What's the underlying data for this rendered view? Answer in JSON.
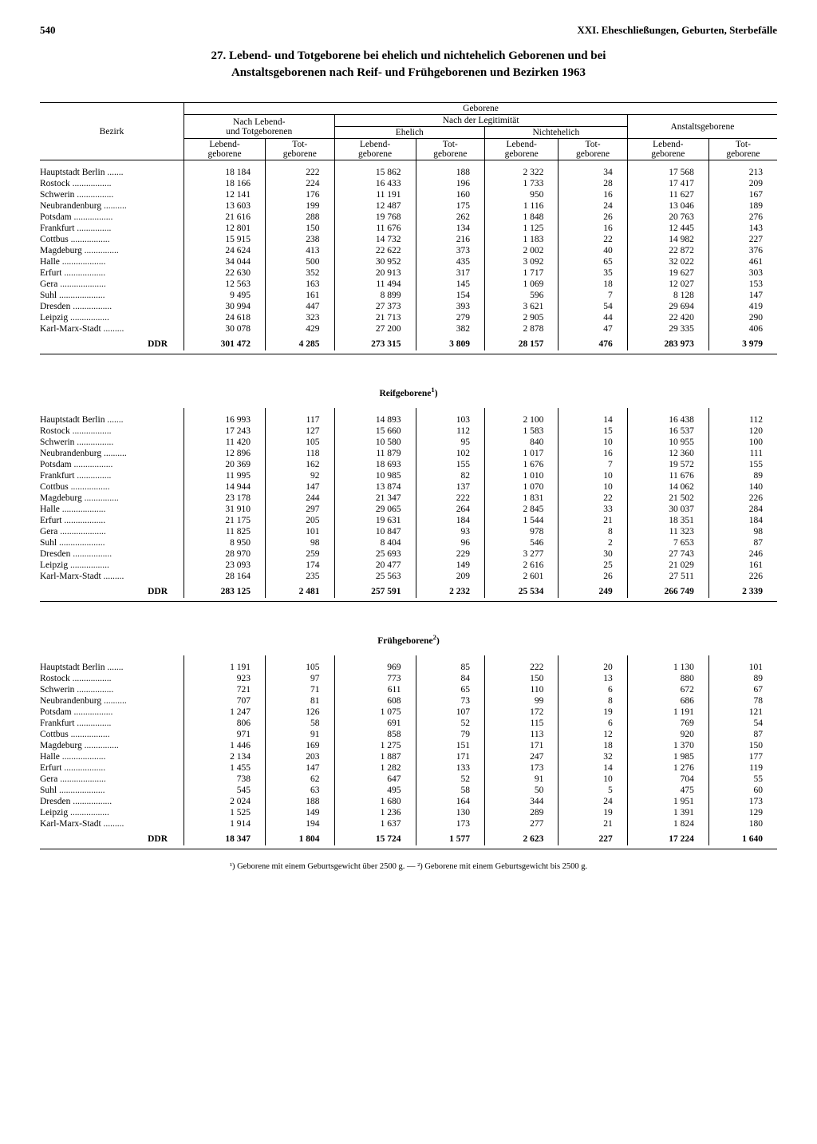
{
  "page_number": "540",
  "running_head": "XXI. Eheschließungen, Geburten, Sterbefälle",
  "title_line1": "27. Lebend- und Totgeborene bei ehelich und nichtehelich Geborenen und bei",
  "title_line2": "Anstaltsgeborenen nach Reif- und Frühgeborenen und Bezirken 1963",
  "headers": {
    "bezirk": "Bezirk",
    "geborene": "Geborene",
    "nach_lebend_tot": "Nach Lebend-\nund Totgeborenen",
    "nach_legit": "Nach der Legitimität",
    "ehelich": "Ehelich",
    "nichtehelich": "Nichtehelich",
    "anstalts": "Anstaltsgeborene",
    "lebend": "Lebend-\ngeborene",
    "tot": "Tot-\ngeborene"
  },
  "districts": [
    "Hauptstadt Berlin",
    "Rostock",
    "Schwerin",
    "Neubrandenburg",
    "Potsdam",
    "Frankfurt",
    "Cottbus",
    "Magdeburg",
    "Halle",
    "Erfurt",
    "Gera",
    "Suhl",
    "Dresden",
    "Leipzig",
    "Karl-Marx-Stadt"
  ],
  "total_label": "DDR",
  "section1": {
    "rows": [
      [
        "18 184",
        "222",
        "15 862",
        "188",
        "2 322",
        "34",
        "17 568",
        "213"
      ],
      [
        "18 166",
        "224",
        "16 433",
        "196",
        "1 733",
        "28",
        "17 417",
        "209"
      ],
      [
        "12 141",
        "176",
        "11 191",
        "160",
        "950",
        "16",
        "11 627",
        "167"
      ],
      [
        "13 603",
        "199",
        "12 487",
        "175",
        "1 116",
        "24",
        "13 046",
        "189"
      ],
      [
        "21 616",
        "288",
        "19 768",
        "262",
        "1 848",
        "26",
        "20 763",
        "276"
      ],
      [
        "12 801",
        "150",
        "11 676",
        "134",
        "1 125",
        "16",
        "12 445",
        "143"
      ],
      [
        "15 915",
        "238",
        "14 732",
        "216",
        "1 183",
        "22",
        "14 982",
        "227"
      ],
      [
        "24 624",
        "413",
        "22 622",
        "373",
        "2 002",
        "40",
        "22 872",
        "376"
      ],
      [
        "34 044",
        "500",
        "30 952",
        "435",
        "3 092",
        "65",
        "32 022",
        "461"
      ],
      [
        "22 630",
        "352",
        "20 913",
        "317",
        "1 717",
        "35",
        "19 627",
        "303"
      ],
      [
        "12 563",
        "163",
        "11 494",
        "145",
        "1 069",
        "18",
        "12 027",
        "153"
      ],
      [
        "9 495",
        "161",
        "8 899",
        "154",
        "596",
        "7",
        "8 128",
        "147"
      ],
      [
        "30 994",
        "447",
        "27 373",
        "393",
        "3 621",
        "54",
        "29 694",
        "419"
      ],
      [
        "24 618",
        "323",
        "21 713",
        "279",
        "2 905",
        "44",
        "22 420",
        "290"
      ],
      [
        "30 078",
        "429",
        "27 200",
        "382",
        "2 878",
        "47",
        "29 335",
        "406"
      ]
    ],
    "total": [
      "301 472",
      "4 285",
      "273 315",
      "3 809",
      "28 157",
      "476",
      "283 973",
      "3 979"
    ]
  },
  "section2": {
    "title": "Reifgeborene",
    "sup": "1",
    "rows": [
      [
        "16 993",
        "117",
        "14 893",
        "103",
        "2 100",
        "14",
        "16 438",
        "112"
      ],
      [
        "17 243",
        "127",
        "15 660",
        "112",
        "1 583",
        "15",
        "16 537",
        "120"
      ],
      [
        "11 420",
        "105",
        "10 580",
        "95",
        "840",
        "10",
        "10 955",
        "100"
      ],
      [
        "12 896",
        "118",
        "11 879",
        "102",
        "1 017",
        "16",
        "12 360",
        "111"
      ],
      [
        "20 369",
        "162",
        "18 693",
        "155",
        "1 676",
        "7",
        "19 572",
        "155"
      ],
      [
        "11 995",
        "92",
        "10 985",
        "82",
        "1 010",
        "10",
        "11 676",
        "89"
      ],
      [
        "14 944",
        "147",
        "13 874",
        "137",
        "1 070",
        "10",
        "14 062",
        "140"
      ],
      [
        "23 178",
        "244",
        "21 347",
        "222",
        "1 831",
        "22",
        "21 502",
        "226"
      ],
      [
        "31 910",
        "297",
        "29 065",
        "264",
        "2 845",
        "33",
        "30 037",
        "284"
      ],
      [
        "21 175",
        "205",
        "19 631",
        "184",
        "1 544",
        "21",
        "18 351",
        "184"
      ],
      [
        "11 825",
        "101",
        "10 847",
        "93",
        "978",
        "8",
        "11 323",
        "98"
      ],
      [
        "8 950",
        "98",
        "8 404",
        "96",
        "546",
        "2",
        "7 653",
        "87"
      ],
      [
        "28 970",
        "259",
        "25 693",
        "229",
        "3 277",
        "30",
        "27 743",
        "246"
      ],
      [
        "23 093",
        "174",
        "20 477",
        "149",
        "2 616",
        "25",
        "21 029",
        "161"
      ],
      [
        "28 164",
        "235",
        "25 563",
        "209",
        "2 601",
        "26",
        "27 511",
        "226"
      ]
    ],
    "total": [
      "283 125",
      "2 481",
      "257 591",
      "2 232",
      "25 534",
      "249",
      "266 749",
      "2 339"
    ]
  },
  "section3": {
    "title": "Frühgeborene",
    "sup": "2",
    "rows": [
      [
        "1 191",
        "105",
        "969",
        "85",
        "222",
        "20",
        "1 130",
        "101"
      ],
      [
        "923",
        "97",
        "773",
        "84",
        "150",
        "13",
        "880",
        "89"
      ],
      [
        "721",
        "71",
        "611",
        "65",
        "110",
        "6",
        "672",
        "67"
      ],
      [
        "707",
        "81",
        "608",
        "73",
        "99",
        "8",
        "686",
        "78"
      ],
      [
        "1 247",
        "126",
        "1 075",
        "107",
        "172",
        "19",
        "1 191",
        "121"
      ],
      [
        "806",
        "58",
        "691",
        "52",
        "115",
        "6",
        "769",
        "54"
      ],
      [
        "971",
        "91",
        "858",
        "79",
        "113",
        "12",
        "920",
        "87"
      ],
      [
        "1 446",
        "169",
        "1 275",
        "151",
        "171",
        "18",
        "1 370",
        "150"
      ],
      [
        "2 134",
        "203",
        "1 887",
        "171",
        "247",
        "32",
        "1 985",
        "177"
      ],
      [
        "1 455",
        "147",
        "1 282",
        "133",
        "173",
        "14",
        "1 276",
        "119"
      ],
      [
        "738",
        "62",
        "647",
        "52",
        "91",
        "10",
        "704",
        "55"
      ],
      [
        "545",
        "63",
        "495",
        "58",
        "50",
        "5",
        "475",
        "60"
      ],
      [
        "2 024",
        "188",
        "1 680",
        "164",
        "344",
        "24",
        "1 951",
        "173"
      ],
      [
        "1 525",
        "149",
        "1 236",
        "130",
        "289",
        "19",
        "1 391",
        "129"
      ],
      [
        "1 914",
        "194",
        "1 637",
        "173",
        "277",
        "21",
        "1 824",
        "180"
      ]
    ],
    "total": [
      "18 347",
      "1 804",
      "15 724",
      "1 577",
      "2 623",
      "227",
      "17 224",
      "1 640"
    ]
  },
  "footnote": "¹) Geborene mit einem Geburtsgewicht über 2500 g. — ²) Geborene mit einem Geburtsgewicht bis 2500 g."
}
